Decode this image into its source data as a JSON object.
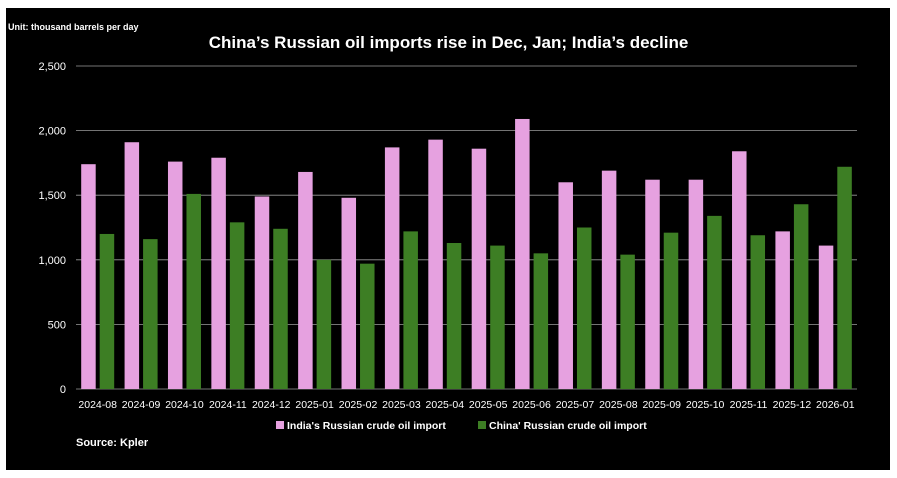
{
  "chart_data": {
    "type": "bar",
    "title": "China’s Russian oil imports rise in Dec, Jan; India’s decline",
    "unit_label": "Unit: thousand barrels per day",
    "source": "Source: Kpler",
    "xlabel": "",
    "ylabel": "",
    "ylim": [
      0,
      2500
    ],
    "yticks": [
      0,
      500,
      1000,
      1500,
      2000,
      2500
    ],
    "ytick_labels": [
      "0",
      "500",
      "1,000",
      "1,500",
      "2,000",
      "2,500"
    ],
    "grid": true,
    "legend_position": "bottom",
    "categories": [
      "2024-08",
      "2024-09",
      "2024-10",
      "2024-11",
      "2024-12",
      "2025-01",
      "2025-02",
      "2025-03",
      "2025-04",
      "2025-05",
      "2025-06",
      "2025-07",
      "2025-08",
      "2025-09",
      "2025-10",
      "2025-11",
      "2025-12",
      "2026-01"
    ],
    "series": [
      {
        "name": "India's Russian crude oil import",
        "color": "#e6a1e0",
        "values": [
          1740,
          1910,
          1760,
          1790,
          1490,
          1680,
          1480,
          1870,
          1930,
          1860,
          2090,
          1600,
          1690,
          1620,
          1620,
          1840,
          1220,
          1110
        ]
      },
      {
        "name": "China' Russian crude oil import",
        "color": "#3d7e24",
        "values": [
          1200,
          1160,
          1510,
          1290,
          1240,
          1000,
          970,
          1220,
          1130,
          1110,
          1050,
          1250,
          1040,
          1210,
          1340,
          1190,
          1430,
          1720
        ]
      }
    ],
    "colors": {
      "background": "#000000",
      "text": "#ffffff",
      "grid": "#9a9a9a"
    }
  }
}
